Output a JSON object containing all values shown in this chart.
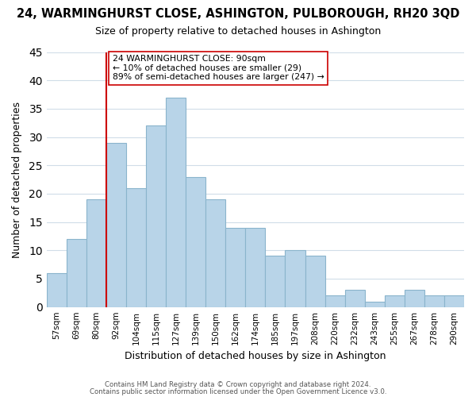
{
  "title": "24, WARMINGHURST CLOSE, ASHINGTON, PULBOROUGH, RH20 3QD",
  "subtitle": "Size of property relative to detached houses in Ashington",
  "xlabel": "Distribution of detached houses by size in Ashington",
  "ylabel": "Number of detached properties",
  "bar_labels": [
    "57sqm",
    "69sqm",
    "80sqm",
    "92sqm",
    "104sqm",
    "115sqm",
    "127sqm",
    "139sqm",
    "150sqm",
    "162sqm",
    "174sqm",
    "185sqm",
    "197sqm",
    "208sqm",
    "220sqm",
    "232sqm",
    "243sqm",
    "255sqm",
    "267sqm",
    "278sqm",
    "290sqm"
  ],
  "bar_heights": [
    6,
    12,
    19,
    29,
    21,
    32,
    37,
    23,
    19,
    14,
    14,
    9,
    10,
    9,
    2,
    3,
    1,
    2,
    3,
    2,
    2
  ],
  "ylim": [
    0,
    45
  ],
  "yticks": [
    0,
    5,
    10,
    15,
    20,
    25,
    30,
    35,
    40,
    45
  ],
  "bar_color": "#b8d4e8",
  "bar_edge_color": "#8ab4cc",
  "vline_x_index": 3,
  "vline_color": "#cc0000",
  "annotation_line1": "24 WARMINGHURST CLOSE: 90sqm",
  "annotation_line2": "← 10% of detached houses are smaller (29)",
  "annotation_line3": "89% of semi-detached houses are larger (247) →",
  "annotation_box_color": "#ffffff",
  "annotation_box_edge": "#cc0000",
  "footer1": "Contains HM Land Registry data © Crown copyright and database right 2024.",
  "footer2": "Contains public sector information licensed under the Open Government Licence v3.0.",
  "bg_color": "#ffffff",
  "grid_color": "#d0dde8"
}
